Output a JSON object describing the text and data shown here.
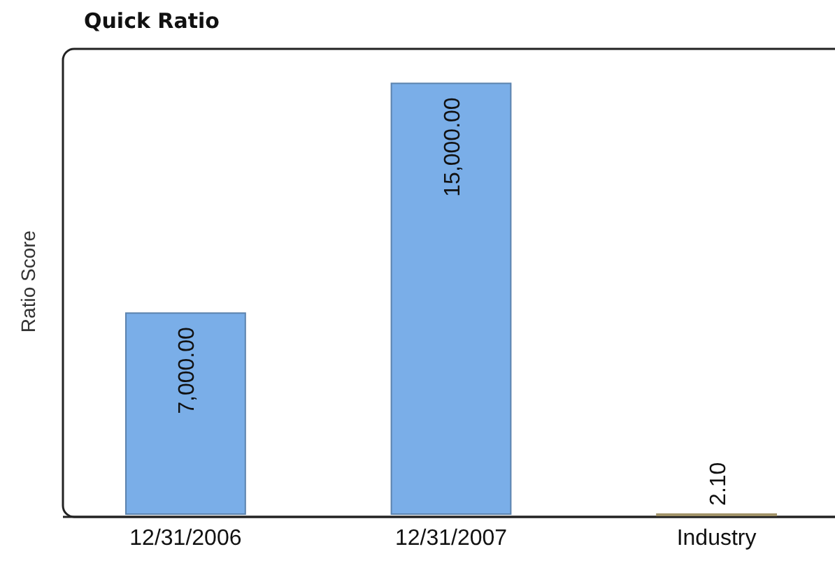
{
  "chart_data": {
    "type": "bar",
    "title": "Quick Ratio",
    "ylabel": "Ratio Score",
    "categories": [
      "12/31/2006",
      "12/31/2007",
      "Industry"
    ],
    "values": [
      7000,
      15000,
      2.1
    ],
    "colors": [
      "#7aaee8",
      "#7aaee8",
      "#d8c48a"
    ],
    "value_labels": [
      "7,000.00",
      "15,000.00",
      "2.10"
    ],
    "grid": false
  }
}
